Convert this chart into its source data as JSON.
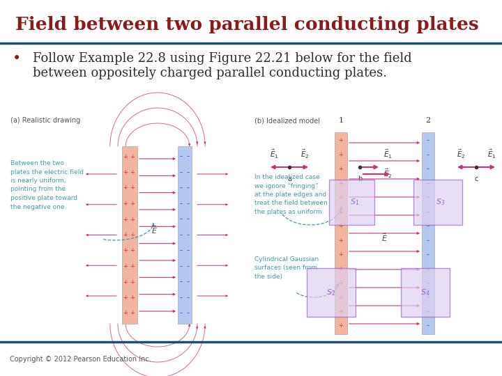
{
  "title": "Field between two parallel conducting plates",
  "title_color": "#8B1A1A",
  "title_fontsize": 19,
  "divider_color": "#1C4F6B",
  "divider_thickness": 2.5,
  "bullet_line1": "Follow Example 22.8 using Figure 22.21 below for the field",
  "bullet_line2": "between oppositely charged parallel conducting plates.",
  "bullet_color": "#8B1A1A",
  "bullet_fontsize": 13,
  "text_color": "#2C2C2C",
  "copyright_text": "Copyright © 2012 Pearson Education Inc.",
  "copyright_fontsize": 7,
  "copyright_color": "#555555",
  "bg_color": "#FFFFFF",
  "plate_pink": "#F2B5A0",
  "plate_blue": "#B5C8F2",
  "arrow_color": "#CC3377",
  "gaussian_color": "#9966CC",
  "ann_color": "#4499AA",
  "label_color": "#555555"
}
